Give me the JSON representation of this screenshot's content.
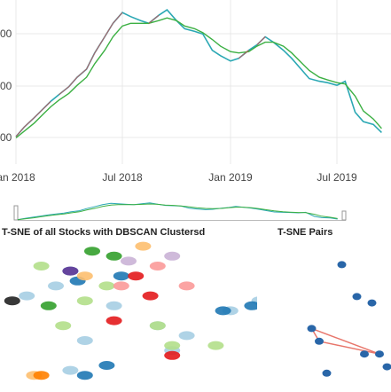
{
  "main_chart": {
    "y_tick_labels": [
      "00",
      "00",
      "00"
    ],
    "x_tick_labels": [
      "an 2018",
      "Jul 2018",
      "Jan 2019",
      "Jul 2019"
    ],
    "colors": {
      "price_line": "#2ba8b4",
      "increasing": "#ff3b3b",
      "moving_average": "#3cb043",
      "grid": "#e8e8e8"
    }
  },
  "range_slider": {
    "colors": {
      "border": "#bbbbbb",
      "handle": "#999999"
    }
  },
  "tsne_all": {
    "title": "T-SNE of all Stocks with DBSCAN Clustersd"
  },
  "tsne_pairs": {
    "title": "T-SNE Pairs",
    "colors": {
      "points": "#2966a8",
      "link": "#e8766b"
    }
  },
  "chart_data": [
    {
      "type": "line",
      "x": [
        "2018-01-01",
        "2018-01-15",
        "2018-02-01",
        "2018-02-15",
        "2018-03-01",
        "2018-03-15",
        "2018-04-01",
        "2018-04-15",
        "2018-05-01",
        "2018-05-15",
        "2018-06-01",
        "2018-06-15",
        "2018-07-01",
        "2018-07-15",
        "2018-08-01",
        "2018-08-15",
        "2018-09-01",
        "2018-09-15",
        "2018-10-01",
        "2018-10-15",
        "2018-11-01",
        "2018-11-15",
        "2018-12-01",
        "2018-12-15",
        "2019-01-01",
        "2019-01-15",
        "2019-02-01",
        "2019-02-15",
        "2019-03-01",
        "2019-03-15",
        "2019-04-01",
        "2019-04-15",
        "2019-05-01",
        "2019-05-15",
        "2019-06-01",
        "2019-06-15",
        "2019-07-01",
        "2019-07-15",
        "2019-08-01",
        "2019-08-15",
        "2019-09-01",
        "2019-09-15"
      ],
      "series": [
        {
          "values": [
            0.2,
            0.9,
            1.6,
            2.2,
            2.8,
            3.3,
            3.9,
            4.6,
            5.2,
            6.4,
            7.6,
            8.6,
            9.4,
            9.1,
            8.8,
            8.6,
            9.2,
            9.6,
            8.8,
            8.2,
            8.0,
            7.8,
            6.6,
            6.2,
            5.8,
            6.0,
            6.6,
            7.0,
            7.6,
            7.2,
            6.6,
            6.0,
            5.2,
            4.5,
            4.3,
            4.2,
            4.0,
            4.3,
            2.0,
            1.3,
            1.1,
            0.5
          ]
        },
        {
          "values": [
            0.1,
            0.6,
            1.2,
            1.8,
            2.4,
            2.9,
            3.4,
            4.0,
            4.6,
            5.6,
            6.6,
            7.6,
            8.4,
            8.6,
            8.6,
            8.6,
            8.8,
            9.0,
            8.8,
            8.4,
            8.2,
            7.9,
            7.4,
            6.9,
            6.5,
            6.4,
            6.5,
            6.9,
            7.2,
            7.2,
            6.9,
            6.4,
            5.7,
            5.1,
            4.6,
            4.4,
            4.2,
            4.1,
            3.2,
            2.1,
            1.5,
            0.8
          ]
        }
      ]
    },
    {
      "type": "scatter",
      "title": "T-SNE of all Stocks with DBSCAN Clustersd",
      "series": [
        {
          "color": "#a6cee3",
          "x": [
            -14,
            -10,
            -2,
            4,
            6,
            -6,
            18,
            8,
            14,
            -8
          ],
          "y": [
            4,
            6,
            2,
            -2,
            -7,
            -5,
            3,
            -4,
            1,
            -11
          ]
        },
        {
          "color": "#1f78b4",
          "x": [
            -8,
            -7,
            -1,
            13,
            17,
            -3,
            -6
          ],
          "y": [
            9,
            7,
            8,
            1,
            2,
            -10,
            -12
          ]
        },
        {
          "color": "#b2df8a",
          "x": [
            -12,
            -6,
            -9,
            -3,
            6,
            12,
            4
          ],
          "y": [
            10,
            3,
            -2,
            6,
            -6,
            -6,
            -2
          ]
        },
        {
          "color": "#33a02c",
          "x": [
            -11,
            -5,
            -2
          ],
          "y": [
            2,
            13,
            12
          ]
        },
        {
          "color": "#e31a1c",
          "x": [
            1,
            3,
            -2,
            6
          ],
          "y": [
            8,
            4,
            -1,
            -8
          ]
        },
        {
          "color": "#fb9a99",
          "x": [
            -1,
            4,
            8
          ],
          "y": [
            6,
            10,
            6
          ]
        },
        {
          "color": "#fdbf6f",
          "x": [
            -13,
            2,
            -6
          ],
          "y": [
            -12,
            14,
            8
          ]
        },
        {
          "color": "#ff7f00",
          "x": [
            -12
          ],
          "y": [
            -12
          ]
        },
        {
          "color": "#cab2d6",
          "x": [
            0,
            6
          ],
          "y": [
            11,
            12
          ]
        },
        {
          "color": "#6a3d9a",
          "x": [
            -8
          ],
          "y": [
            9
          ]
        },
        {
          "color": "#222222",
          "x": [
            -16
          ],
          "y": [
            3
          ]
        }
      ]
    },
    {
      "type": "scatter",
      "title": "T-SNE Pairs",
      "series": [
        {
          "x": [
            3,
            5,
            7,
            -1,
            0,
            8,
            9,
            6,
            1
          ],
          "y": [
            8,
            3,
            2,
            -2,
            -4,
            -6,
            -8,
            -6,
            -9
          ]
        }
      ]
    }
  ]
}
